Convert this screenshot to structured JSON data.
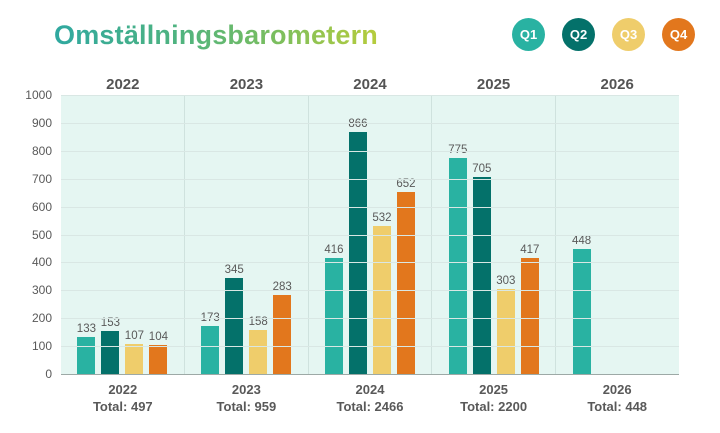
{
  "title": "Omställningsbarometern",
  "legend": {
    "items": [
      {
        "label": "Q1",
        "color": "#29b2a2"
      },
      {
        "label": "Q2",
        "color": "#04716a"
      },
      {
        "label": "Q3",
        "color": "#efcd6b"
      },
      {
        "label": "Q4",
        "color": "#e2771d"
      }
    ]
  },
  "chart_data": {
    "type": "bar",
    "title": "Omställningsbarometern",
    "categories": [
      "2022",
      "2023",
      "2024",
      "2025",
      "2026"
    ],
    "series": [
      {
        "name": "Q1",
        "color": "#29b2a2",
        "values": [
          133,
          173,
          416,
          775,
          448
        ]
      },
      {
        "name": "Q2",
        "color": "#04716a",
        "values": [
          153,
          345,
          866,
          705,
          null
        ]
      },
      {
        "name": "Q3",
        "color": "#efcd6b",
        "values": [
          107,
          158,
          532,
          303,
          null
        ]
      },
      {
        "name": "Q4",
        "color": "#e2771d",
        "values": [
          104,
          283,
          652,
          417,
          null
        ]
      }
    ],
    "totals": [
      497,
      959,
      2466,
      2200,
      448
    ],
    "total_prefix": "Total: ",
    "ylim": [
      0,
      1000
    ],
    "ytick_interval": 100,
    "yticks": [
      "1000",
      "900",
      "800",
      "700",
      "600",
      "500",
      "400",
      "300",
      "200",
      "100",
      "0"
    ],
    "grid": true,
    "legend_position": "top-right",
    "plot_background": "#e5f6f2"
  }
}
